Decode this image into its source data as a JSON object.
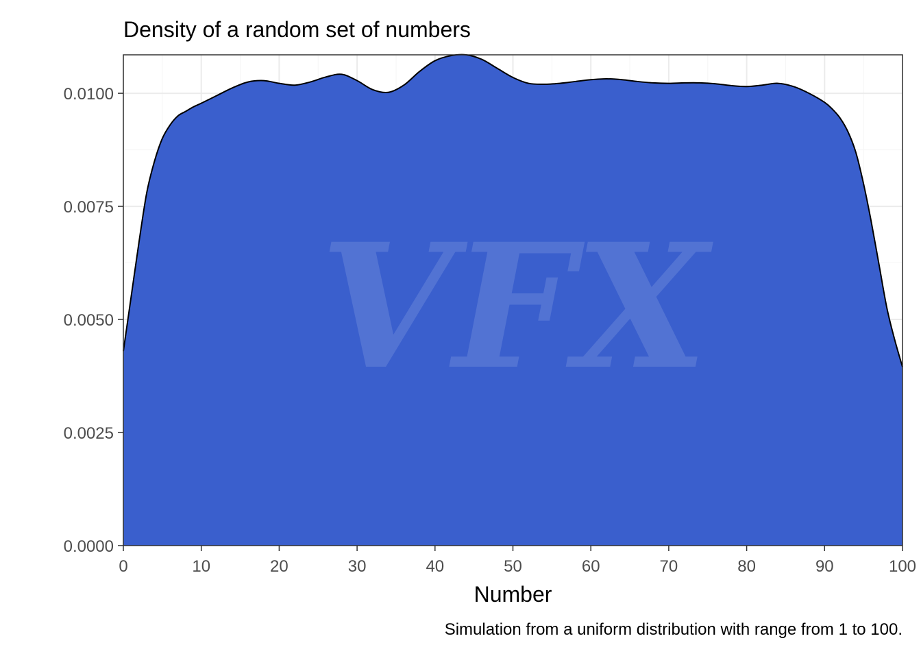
{
  "chart_data": {
    "type": "area",
    "title": "Density of a random set of numbers",
    "xlabel": "Number",
    "ylabel": "",
    "caption": "Simulation from a uniform distribution with range from 1 to 100.",
    "xlim": [
      0,
      100
    ],
    "ylim": [
      0,
      0.01085
    ],
    "x_ticks": [
      0,
      10,
      20,
      30,
      40,
      50,
      60,
      70,
      80,
      90,
      100
    ],
    "x_tick_labels": [
      "0",
      "10",
      "20",
      "30",
      "40",
      "50",
      "60",
      "70",
      "80",
      "90",
      "100"
    ],
    "y_ticks": [
      0,
      0.0025,
      0.005,
      0.0075,
      0.01
    ],
    "y_tick_labels": [
      "0.0000",
      "0.0025",
      "0.0050",
      "0.0075",
      "0.0100"
    ],
    "grid": true,
    "legend": "none",
    "fill_color": "#3a5fcd",
    "line_color": "#000000",
    "watermark": "VFX",
    "series": [
      {
        "x": [
          0,
          1,
          2,
          3,
          4,
          5,
          6,
          7,
          8,
          9,
          10,
          12,
          14,
          16,
          18,
          20,
          22,
          24,
          26,
          28,
          30,
          32,
          34,
          36,
          38,
          40,
          42,
          44,
          46,
          48,
          50,
          52,
          54,
          56,
          58,
          60,
          62,
          64,
          66,
          68,
          70,
          72,
          74,
          76,
          78,
          80,
          82,
          84,
          86,
          88,
          90,
          91,
          92,
          93,
          94,
          95,
          96,
          97,
          98,
          99,
          100
        ],
        "y": [
          0.0043,
          0.0055,
          0.0067,
          0.0078,
          0.0085,
          0.009,
          0.0093,
          0.0095,
          0.0096,
          0.0097,
          0.00978,
          0.00995,
          0.01012,
          0.01025,
          0.01028,
          0.01022,
          0.01018,
          0.01025,
          0.01036,
          0.01042,
          0.01028,
          0.01008,
          0.01002,
          0.01018,
          0.01048,
          0.01072,
          0.01083,
          0.01085,
          0.01075,
          0.01055,
          0.01035,
          0.01022,
          0.0102,
          0.01022,
          0.01026,
          0.0103,
          0.01032,
          0.0103,
          0.01026,
          0.01023,
          0.01022,
          0.01023,
          0.01023,
          0.01021,
          0.01017,
          0.01015,
          0.01018,
          0.01022,
          0.01015,
          0.01,
          0.0098,
          0.00965,
          0.00945,
          0.00915,
          0.0087,
          0.008,
          0.00715,
          0.0062,
          0.00525,
          0.00455,
          0.00395
        ]
      }
    ]
  }
}
